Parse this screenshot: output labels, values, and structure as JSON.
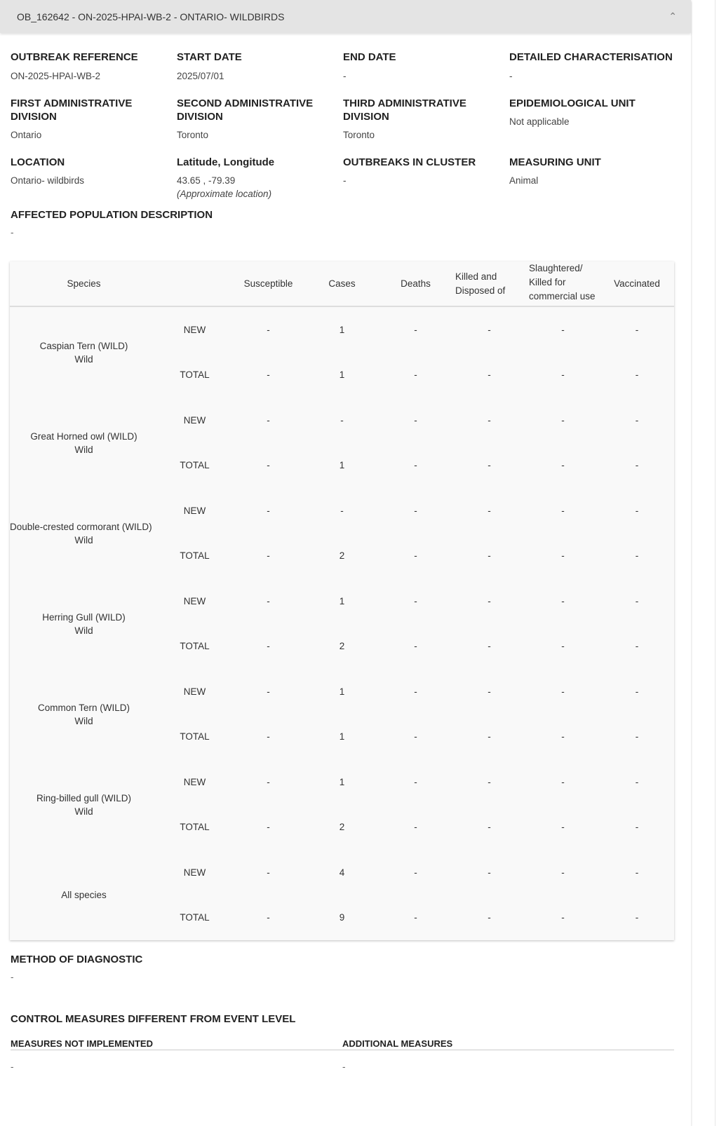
{
  "header": {
    "title": "OB_162642 - ON-2025-HPAI-WB-2 - ONTARIO- WILDBIRDS",
    "collapse_icon": "chevron-up-icon"
  },
  "fields": [
    {
      "label": "OUTBREAK REFERENCE",
      "value": "ON-2025-HPAI-WB-2"
    },
    {
      "label": "START DATE",
      "value": "2025/07/01"
    },
    {
      "label": "END DATE",
      "value": "-"
    },
    {
      "label": "DETAILED CHARACTERISATION",
      "value": "-"
    },
    {
      "label": "FIRST ADMINISTRATIVE DIVISION",
      "value": "Ontario"
    },
    {
      "label": "SECOND ADMINISTRATIVE DIVISION",
      "value": "Toronto"
    },
    {
      "label": "THIRD ADMINISTRATIVE DIVISION",
      "value": "Toronto"
    },
    {
      "label": "EPIDEMIOLOGICAL UNIT",
      "value": "Not applicable"
    },
    {
      "label": "LOCATION",
      "value": "Ontario- wildbirds"
    },
    {
      "label": "Latitude, Longitude",
      "value": "43.65 , -79.39",
      "note": "(Approximate location)"
    },
    {
      "label": "OUTBREAKS IN CLUSTER",
      "value": "-"
    },
    {
      "label": "MEASURING UNIT",
      "value": "Animal"
    }
  ],
  "affected": {
    "label": "AFFECTED POPULATION DESCRIPTION",
    "value": "-"
  },
  "table": {
    "headers": [
      "Species",
      "",
      "Susceptible",
      "Cases",
      "Deaths",
      "Killed and Disposed of",
      "Slaughtered/ Killed for commercial use",
      "Vaccinated"
    ],
    "groups": [
      {
        "species": "Caspian Tern (WILD)",
        "type": "Wild",
        "rows": [
          [
            "NEW",
            "-",
            "1",
            "-",
            "-",
            "-",
            "-"
          ],
          [
            "TOTAL",
            "-",
            "1",
            "-",
            "-",
            "-",
            "-"
          ]
        ]
      },
      {
        "species": "Great Horned owl (WILD)",
        "type": "Wild",
        "rows": [
          [
            "NEW",
            "-",
            "-",
            "-",
            "-",
            "-",
            "-"
          ],
          [
            "TOTAL",
            "-",
            "1",
            "-",
            "-",
            "-",
            "-"
          ]
        ]
      },
      {
        "species": "Double-crested cormorant (WILD)",
        "type": "Wild",
        "rows": [
          [
            "NEW",
            "-",
            "-",
            "-",
            "-",
            "-",
            "-"
          ],
          [
            "TOTAL",
            "-",
            "2",
            "-",
            "-",
            "-",
            "-"
          ]
        ]
      },
      {
        "species": "Herring Gull (WILD)",
        "type": "Wild",
        "rows": [
          [
            "NEW",
            "-",
            "1",
            "-",
            "-",
            "-",
            "-"
          ],
          [
            "TOTAL",
            "-",
            "2",
            "-",
            "-",
            "-",
            "-"
          ]
        ]
      },
      {
        "species": "Common Tern (WILD)",
        "type": "Wild",
        "rows": [
          [
            "NEW",
            "-",
            "1",
            "-",
            "-",
            "-",
            "-"
          ],
          [
            "TOTAL",
            "-",
            "1",
            "-",
            "-",
            "-",
            "-"
          ]
        ]
      },
      {
        "species": "Ring-billed gull (WILD)",
        "type": "Wild",
        "rows": [
          [
            "NEW",
            "-",
            "1",
            "-",
            "-",
            "-",
            "-"
          ],
          [
            "TOTAL",
            "-",
            "2",
            "-",
            "-",
            "-",
            "-"
          ]
        ]
      },
      {
        "species": "All species",
        "type": "",
        "rows": [
          [
            "NEW",
            "-",
            "4",
            "-",
            "-",
            "-",
            "-"
          ],
          [
            "TOTAL",
            "-",
            "9",
            "-",
            "-",
            "-",
            "-"
          ]
        ]
      }
    ]
  },
  "diagnostic": {
    "label": "METHOD OF DIAGNOSTIC",
    "value": "-"
  },
  "control": {
    "label": "CONTROL MEASURES DIFFERENT FROM EVENT LEVEL",
    "not_impl_label": "MEASURES NOT IMPLEMENTED",
    "not_impl_value": "-",
    "additional_label": "ADDITIONAL MEASURES",
    "additional_value": "-"
  }
}
